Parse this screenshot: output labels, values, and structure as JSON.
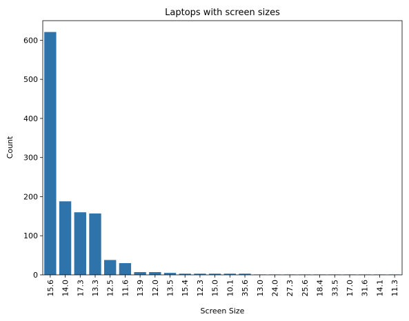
{
  "chart_data": {
    "type": "bar",
    "title": "Laptops with screen sizes",
    "xlabel": "Screen Size",
    "ylabel": "Count",
    "ylim": [
      0,
      650
    ],
    "yticks": [
      0,
      100,
      200,
      300,
      400,
      500,
      600
    ],
    "categories": [
      "15.6",
      "14.0",
      "17.3",
      "13.3",
      "12.5",
      "11.6",
      "13.9",
      "12.0",
      "13.5",
      "15.4",
      "12.3",
      "15.0",
      "10.1",
      "35.6",
      "13.0",
      "24.0",
      "27.3",
      "25.6",
      "18.4",
      "33.5",
      "17.0",
      "31.6",
      "14.1",
      "11.3"
    ],
    "values": [
      621,
      188,
      160,
      157,
      38,
      30,
      7,
      7,
      5,
      3,
      3,
      3,
      3,
      3,
      1,
      1,
      1,
      1,
      1,
      1,
      1,
      1,
      1,
      1
    ],
    "bar_color": "#2e73aa",
    "grid": false,
    "legend": "none"
  }
}
